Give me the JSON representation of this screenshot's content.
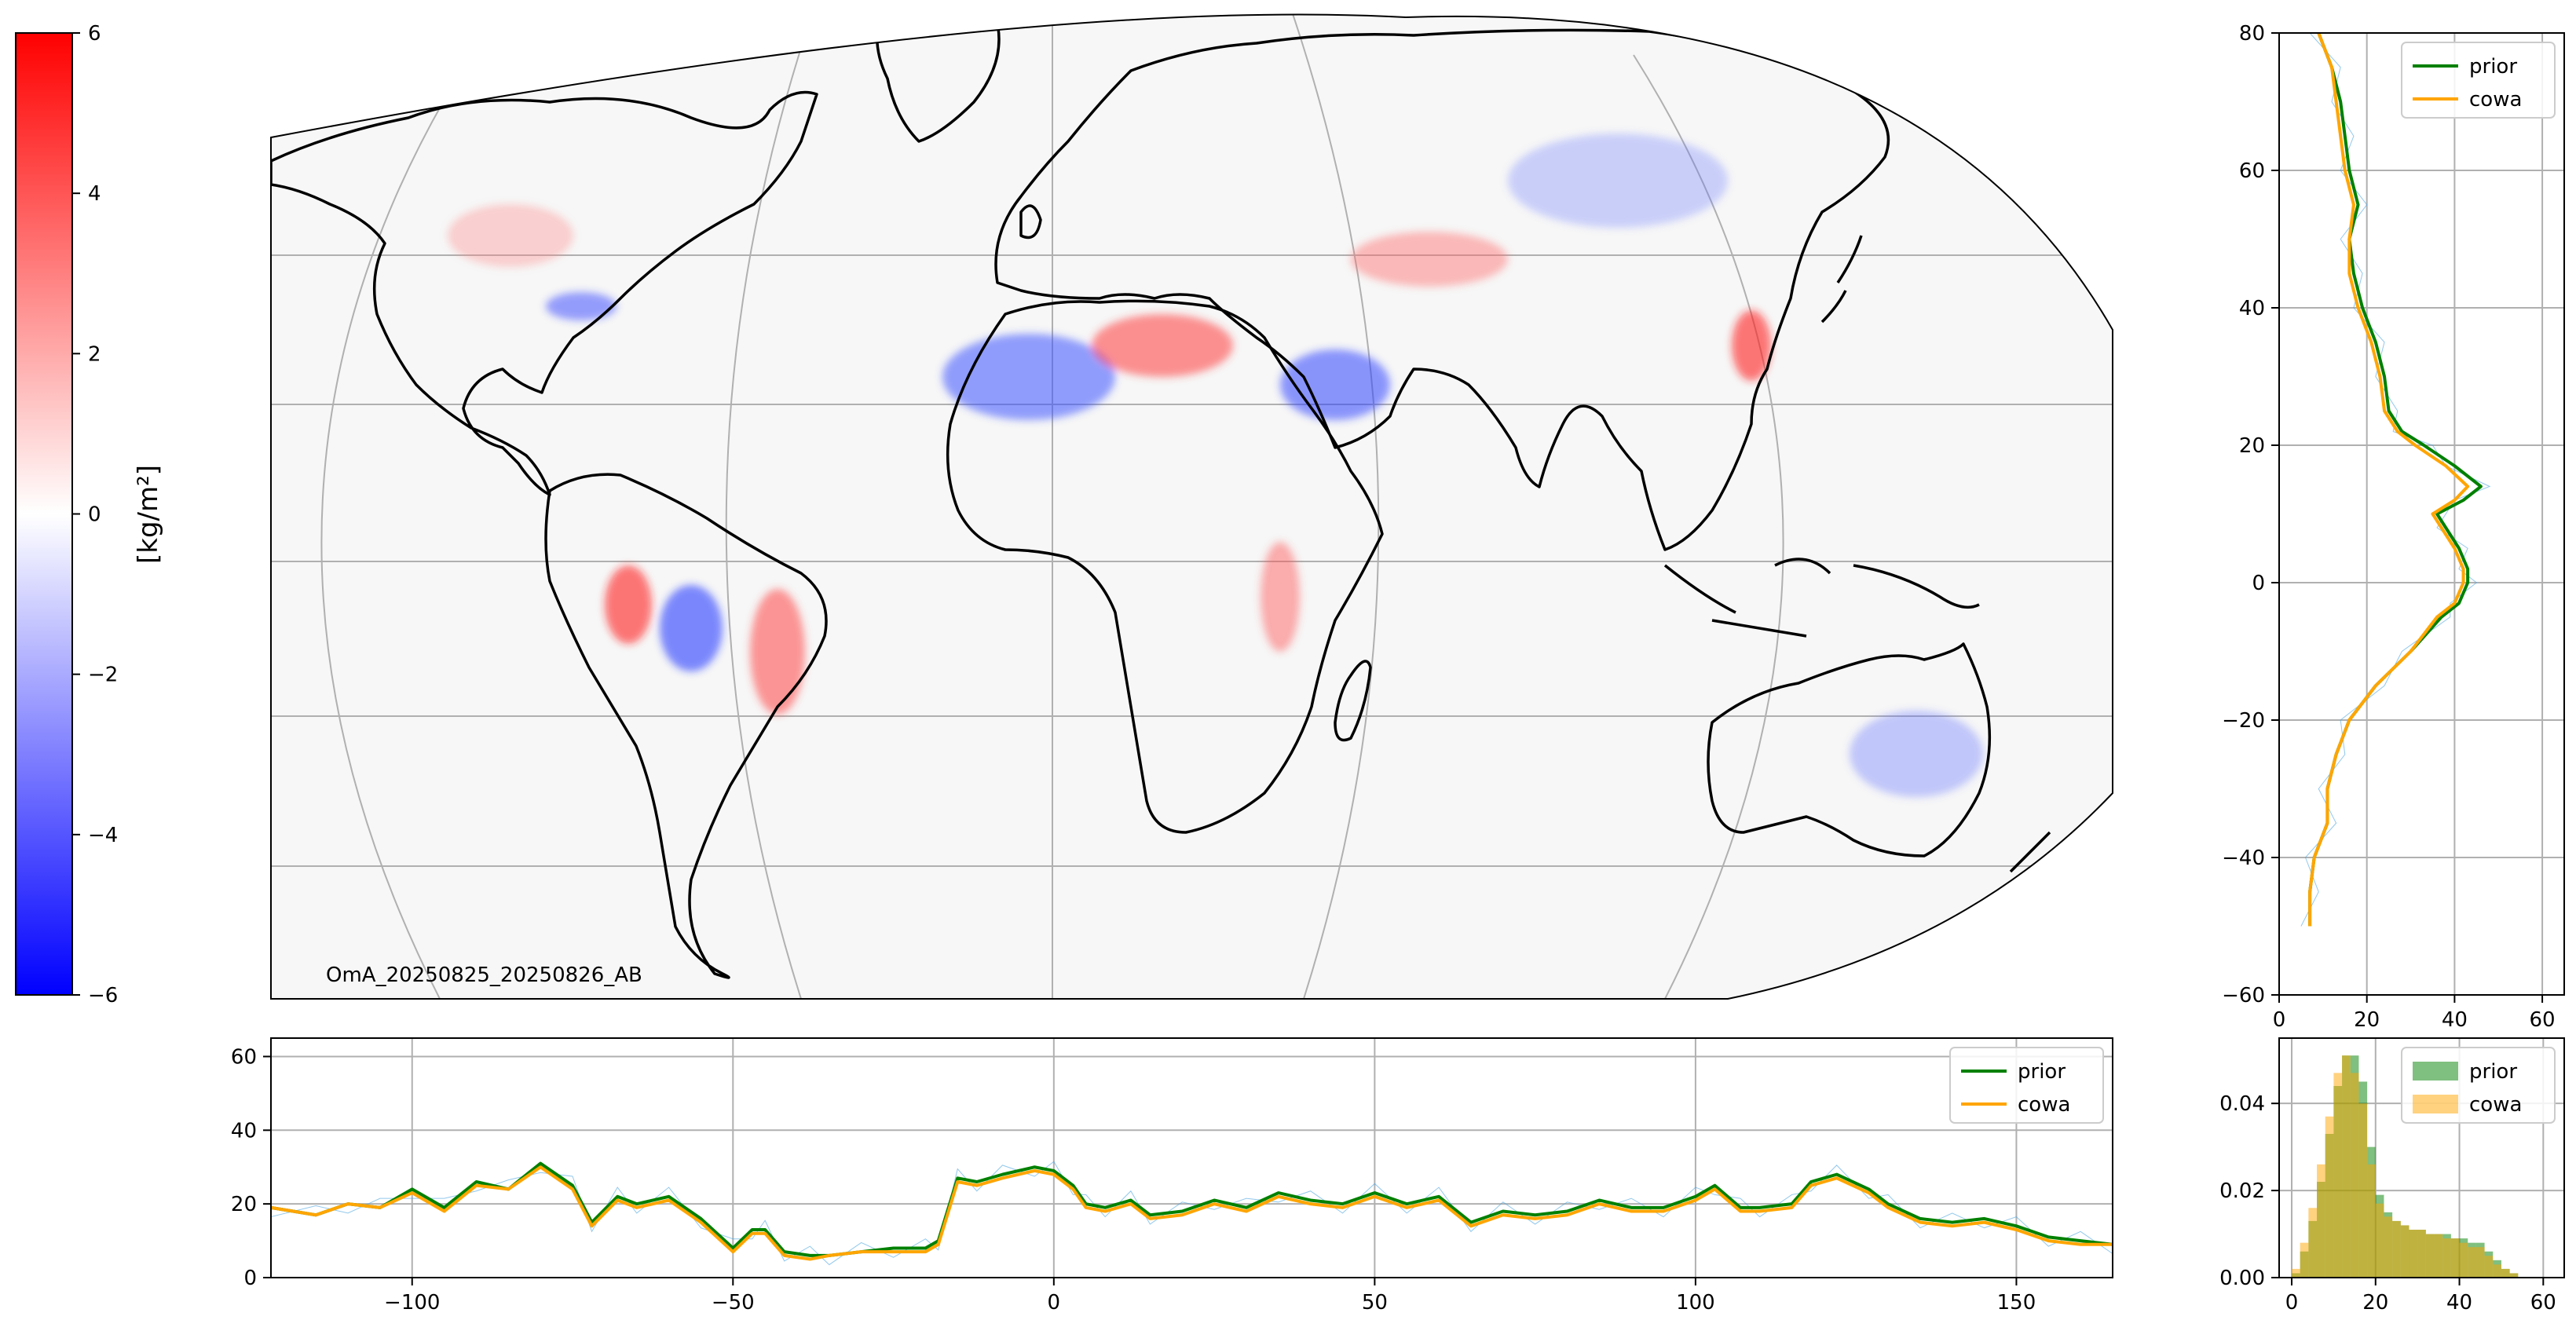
{
  "colorbar": {
    "label": "[kg/m²]",
    "ticks": [
      "6",
      "4",
      "2",
      "0",
      "−2",
      "−4",
      "−6"
    ],
    "range": [
      -6,
      6
    ],
    "colormap": "bwr",
    "colors": {
      "low": "#0000ff",
      "mid": "#ffffff",
      "high": "#ff0000"
    }
  },
  "map": {
    "annotation": "OmA_20250825_20250826_AB",
    "land_outline_color": "#000000",
    "background_color": "#f5f5f5",
    "grid_color": "#b0b0b0"
  },
  "legend": {
    "prior": "prior",
    "cowa": "cowa"
  },
  "colors": {
    "prior": "#008000",
    "cowa": "#ffa500",
    "raw_trace": "#4aa3df",
    "grid": "#b0b0b0"
  },
  "chart_data": [
    {
      "type": "line",
      "panel": "zonal-profile",
      "orientation": "vertical",
      "title": "",
      "xlabel": "",
      "ylabel": "",
      "xlim": [
        0,
        65
      ],
      "ylim": [
        -60,
        80
      ],
      "x_ticks": [
        "0",
        "20",
        "40",
        "60"
      ],
      "y_ticks": [
        "−60",
        "−40",
        "−20",
        "0",
        "20",
        "40",
        "60",
        "80"
      ],
      "grid": true,
      "legend_position": "top-right",
      "y": [
        80,
        75,
        70,
        65,
        60,
        55,
        50,
        45,
        40,
        35,
        30,
        25,
        22,
        20,
        17,
        14,
        12,
        10,
        8,
        5,
        2,
        0,
        -3,
        -5,
        -10,
        -15,
        -20,
        -25,
        -30,
        -35,
        -40,
        -45,
        -50
      ],
      "series": [
        {
          "name": "prior",
          "values": [
            9,
            12,
            14,
            15,
            16,
            18,
            16,
            17,
            19,
            22,
            24,
            25,
            28,
            33,
            40,
            46,
            42,
            36,
            38,
            41,
            43,
            43,
            41,
            37,
            30,
            22,
            16,
            13,
            11,
            11,
            8,
            7,
            7
          ]
        },
        {
          "name": "cowa",
          "values": [
            9,
            12,
            13,
            14,
            15,
            17,
            16,
            16,
            18,
            21,
            23,
            24,
            27,
            31,
            38,
            43,
            40,
            35,
            37,
            40,
            42,
            42,
            40,
            36,
            30,
            22,
            16,
            13,
            11,
            11,
            8,
            7,
            7
          ]
        }
      ]
    },
    {
      "type": "line",
      "panel": "meridional-profile",
      "title": "",
      "xlabel": "",
      "ylabel": "",
      "xlim": [
        -122,
        165
      ],
      "ylim": [
        0,
        65
      ],
      "x_ticks": [
        "−100",
        "−50",
        "0",
        "50",
        "100",
        "150"
      ],
      "y_ticks": [
        "0",
        "20",
        "40",
        "60"
      ],
      "grid": true,
      "legend_position": "top-right",
      "x": [
        -122,
        -115,
        -110,
        -105,
        -100,
        -95,
        -90,
        -85,
        -80,
        -75,
        -72,
        -68,
        -65,
        -60,
        -55,
        -50,
        -47,
        -45,
        -42,
        -38,
        -35,
        -30,
        -25,
        -20,
        -18,
        -15,
        -12,
        -8,
        -3,
        0,
        3,
        5,
        8,
        12,
        15,
        20,
        25,
        30,
        35,
        40,
        45,
        50,
        55,
        60,
        65,
        70,
        75,
        80,
        85,
        90,
        95,
        100,
        103,
        107,
        110,
        115,
        118,
        122,
        127,
        130,
        135,
        140,
        145,
        150,
        155,
        160,
        165
      ],
      "series": [
        {
          "name": "prior",
          "values": [
            19,
            17,
            20,
            19,
            24,
            19,
            26,
            24,
            31,
            25,
            15,
            22,
            20,
            22,
            16,
            8,
            13,
            13,
            7,
            6,
            6,
            7,
            8,
            8,
            10,
            27,
            26,
            28,
            30,
            29,
            25,
            20,
            19,
            21,
            17,
            18,
            21,
            19,
            23,
            21,
            20,
            23,
            20,
            22,
            15,
            18,
            17,
            18,
            21,
            19,
            19,
            22,
            25,
            19,
            19,
            20,
            26,
            28,
            24,
            20,
            16,
            15,
            16,
            14,
            11,
            10,
            9
          ]
        },
        {
          "name": "cowa",
          "values": [
            19,
            17,
            20,
            19,
            23,
            18,
            25,
            24,
            30,
            24,
            14,
            21,
            19,
            21,
            15,
            7,
            12,
            12,
            6,
            5,
            6,
            7,
            7,
            7,
            9,
            26,
            25,
            27,
            29,
            28,
            24,
            19,
            18,
            20,
            16,
            17,
            20,
            18,
            22,
            20,
            19,
            22,
            19,
            21,
            14,
            17,
            16,
            17,
            20,
            18,
            18,
            21,
            24,
            18,
            18,
            19,
            25,
            27,
            23,
            19,
            15,
            14,
            15,
            13,
            10,
            9,
            9
          ]
        }
      ]
    },
    {
      "type": "bar",
      "panel": "histogram",
      "title": "",
      "xlabel": "",
      "ylabel": "",
      "xlim": [
        -3,
        65
      ],
      "ylim": [
        0,
        0.055
      ],
      "x_ticks": [
        "0",
        "20",
        "40",
        "60"
      ],
      "y_ticks": [
        "0.00",
        "0.02",
        "0.04"
      ],
      "grid": true,
      "legend_position": "top-right",
      "bin_width": 2,
      "x": [
        1,
        3,
        5,
        7,
        9,
        11,
        13,
        15,
        17,
        19,
        21,
        23,
        25,
        27,
        29,
        31,
        33,
        35,
        37,
        39,
        41,
        43,
        45,
        47,
        49,
        51,
        53,
        55
      ],
      "series": [
        {
          "name": "prior",
          "values": [
            0.001,
            0.006,
            0.013,
            0.022,
            0.033,
            0.044,
            0.051,
            0.051,
            0.045,
            0.03,
            0.019,
            0.015,
            0.013,
            0.012,
            0.011,
            0.011,
            0.01,
            0.01,
            0.01,
            0.009,
            0.009,
            0.008,
            0.008,
            0.006,
            0.004,
            0.002,
            0.001,
            0.0
          ]
        },
        {
          "name": "cowa",
          "values": [
            0.002,
            0.008,
            0.016,
            0.026,
            0.037,
            0.047,
            0.051,
            0.047,
            0.04,
            0.026,
            0.017,
            0.014,
            0.013,
            0.012,
            0.011,
            0.011,
            0.01,
            0.01,
            0.009,
            0.009,
            0.008,
            0.007,
            0.007,
            0.005,
            0.003,
            0.002,
            0.001,
            0.0
          ]
        }
      ]
    }
  ]
}
